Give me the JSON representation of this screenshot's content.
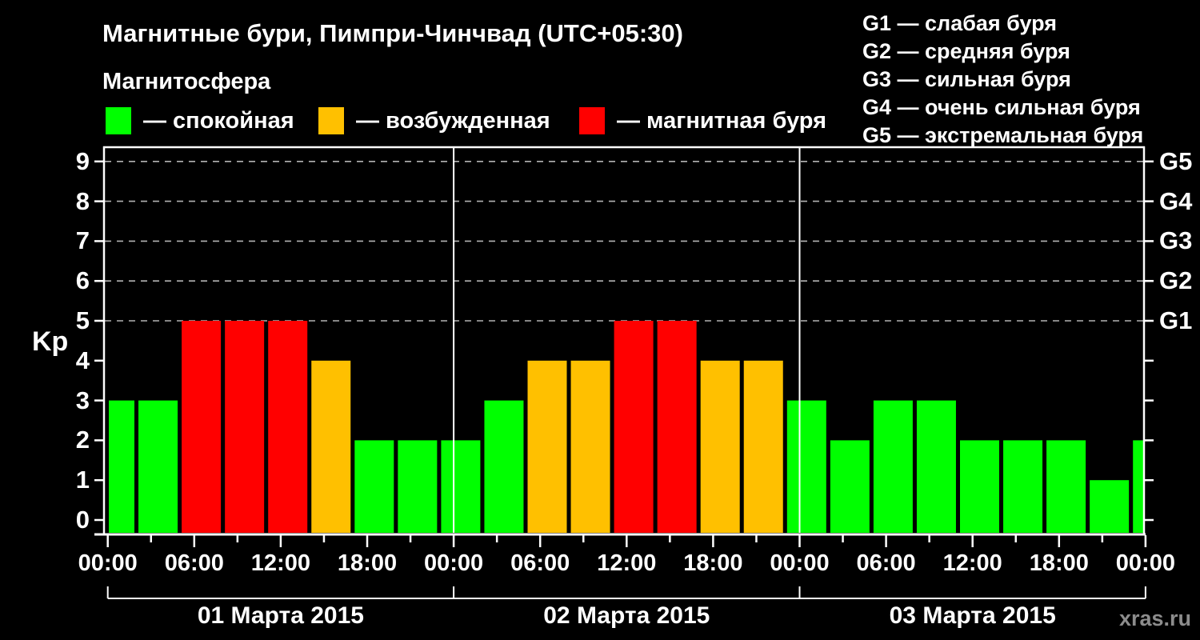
{
  "title": "Магнитные бури, Пимпри-Чинчвад (UTC+05:30)",
  "subtitle": "Магнитосфера",
  "legend": {
    "items": [
      {
        "label": "— спокойная",
        "color": "#00ff00"
      },
      {
        "label": "— возбужденная",
        "color": "#ffc000"
      },
      {
        "label": "— магнитная буря",
        "color": "#ff0000"
      }
    ]
  },
  "g_legend": [
    "G1 — слабая буря",
    "G2 — средняя буря",
    "G3 — сильная буря",
    "G4 — очень сильная буря",
    "G5 — экстремальная буря"
  ],
  "watermark": "xras.ru",
  "chart_data": {
    "type": "bar",
    "title": "Магнитные бури, Пимпри-Чинчвад (UTC+05:30)",
    "ylabel": "Kp",
    "ylim": [
      -0.35,
      9.4
    ],
    "y_ticks": [
      0,
      1,
      2,
      3,
      4,
      5,
      6,
      7,
      8,
      9
    ],
    "grid_levels": [
      5,
      6,
      7,
      8,
      9
    ],
    "right_labels": [
      "G1",
      "G2",
      "G3",
      "G4",
      "G5"
    ],
    "right_label_levels": [
      5,
      6,
      7,
      8,
      9
    ],
    "interval_hours": 3,
    "x_tick_step_hours": 3,
    "x_label_step_hours": 6,
    "x_tick_labels": [
      "00:00",
      "06:00",
      "12:00",
      "18:00",
      "00:00",
      "06:00",
      "12:00",
      "18:00",
      "00:00",
      "06:00",
      "12:00",
      "18:00",
      "00:00"
    ],
    "days": [
      {
        "date": "01 Марта 2015",
        "kp": [
          3,
          3,
          5,
          5,
          5,
          4,
          2,
          2
        ]
      },
      {
        "date": "02 Марта 2015",
        "kp": [
          2,
          3,
          4,
          4,
          5,
          5,
          4,
          4
        ]
      },
      {
        "date": "03 Марта 2015",
        "kp": [
          3,
          2,
          3,
          3,
          2,
          2,
          2,
          1
        ]
      }
    ],
    "trailing_partial_bar_kp": 2,
    "first_bar_clipped": true,
    "colors": {
      "quiet": "#00ff00",
      "active": "#ffc000",
      "storm": "#ff0000"
    },
    "thresholds": {
      "active_kp": 4,
      "storm_kp": 5
    },
    "grid_color": "#b3b3b3",
    "axis_color": "#ffffff"
  }
}
